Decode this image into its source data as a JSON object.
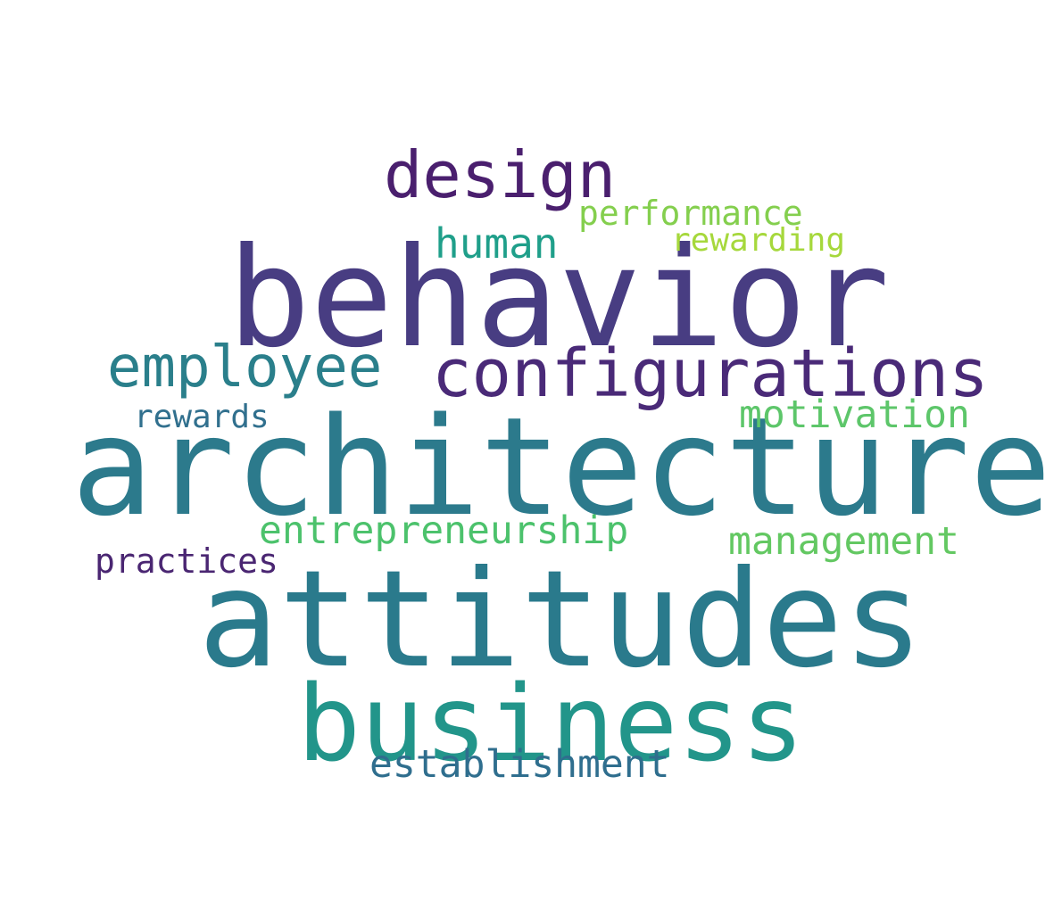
{
  "words": [
    {
      "text": "behavior",
      "color": "#483d82"
    },
    {
      "text": "architecture",
      "color": "#2c7a8c"
    },
    {
      "text": "attitudes",
      "color": "#2a7a8c"
    },
    {
      "text": "business",
      "color": "#22958a"
    },
    {
      "text": "configurations",
      "color": "#4a2a78"
    },
    {
      "text": "design",
      "color": "#4a1f6e"
    },
    {
      "text": "employee",
      "color": "#2a7f8b"
    },
    {
      "text": "human",
      "color": "#1f9f8a"
    },
    {
      "text": "performance",
      "color": "#84cf4e"
    },
    {
      "text": "rewarding",
      "color": "#a6d83c"
    },
    {
      "text": "motivation",
      "color": "#5dc66a"
    },
    {
      "text": "rewards",
      "color": "#31708e"
    },
    {
      "text": "entrepreneurship",
      "color": "#4cc26c"
    },
    {
      "text": "management",
      "color": "#63c862"
    },
    {
      "text": "practices",
      "color": "#4a2672"
    },
    {
      "text": "establishment",
      "color": "#2f6e8e"
    }
  ]
}
